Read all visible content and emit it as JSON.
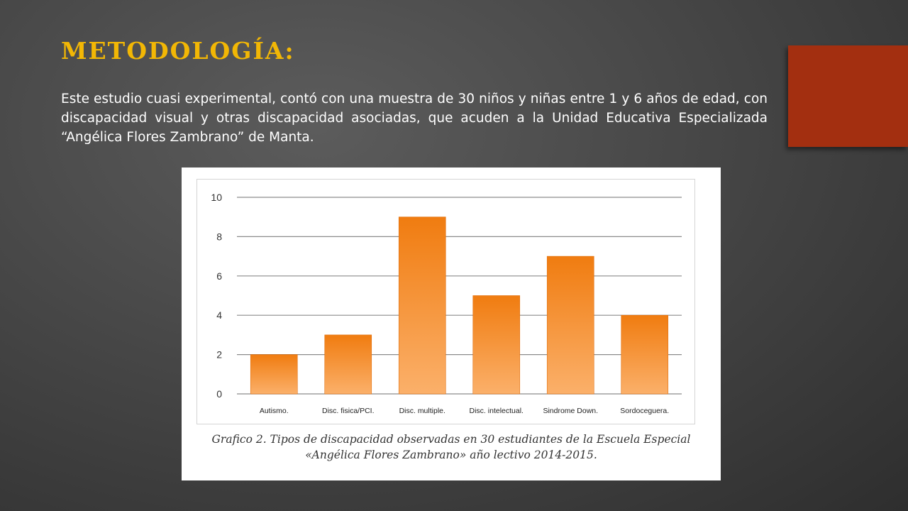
{
  "slide": {
    "title": "METODOLOGÍA:",
    "body": "Este estudio cuasi experimental, contó con una muestra de 30 niños y niñas entre 1 y 6 años de edad, con discapacidad visual y otras discapacidad asociadas, que acuden a la Unidad Educativa Especializada “Angélica Flores Zambrano” de Manta.",
    "accent_color": "#a32f10",
    "title_color": "#f2b705"
  },
  "figure": {
    "caption_line1": "Grafico 2. Tipos de discapacidad observadas en 30 estudiantes de la Escuela Especial",
    "caption_line2": "«Angélica Flores Zambrano» año lectivo 2014-2015."
  },
  "chart_data": {
    "type": "bar",
    "categories": [
      "Autismo.",
      "Disc. fisica/PCI.",
      "Disc. multiple.",
      "Disc. intelectual.",
      "Sindrome Down.",
      "Sordoceguera."
    ],
    "values": [
      2,
      3,
      9,
      5,
      7,
      4
    ],
    "ylim": [
      0,
      10
    ],
    "yticks": [
      0,
      2,
      4,
      6,
      8,
      10
    ],
    "grid": true,
    "legend": "none",
    "bar_color_top": "#f07c10",
    "bar_color_bottom": "#fbb06a"
  }
}
